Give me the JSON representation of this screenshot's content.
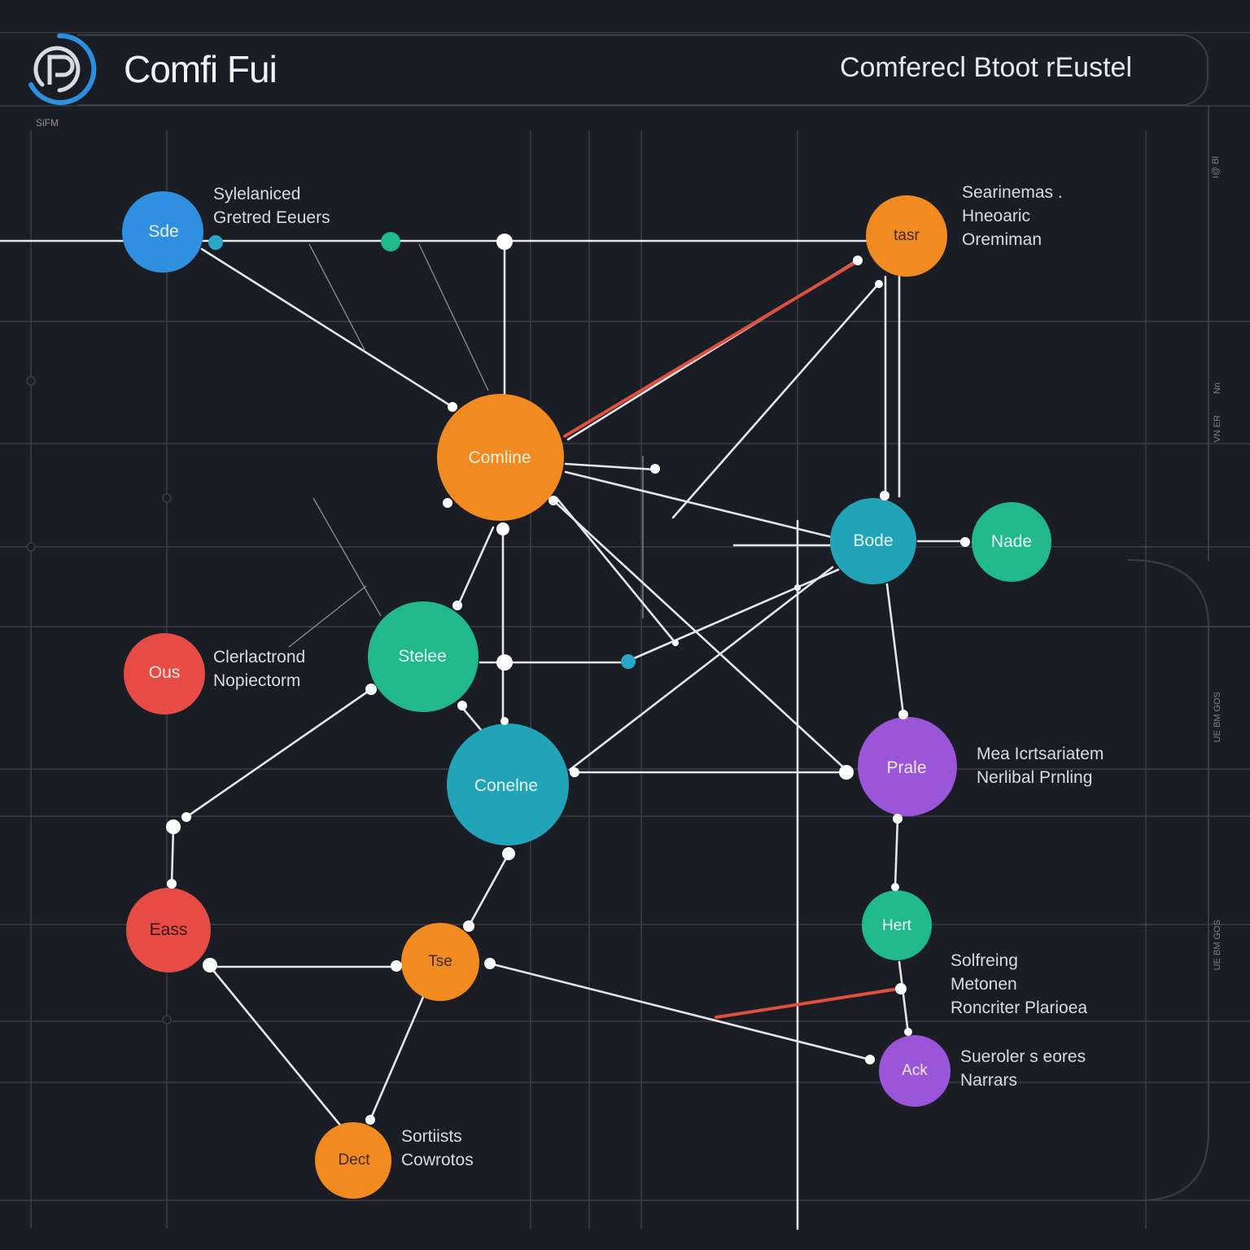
{
  "header": {
    "brand": "Comfi Fui",
    "brand_sub": "SiFM",
    "title": "Comferecl Btoot rEustel"
  },
  "side_tags": [
    "I@ Bl",
    "Nn",
    "VN ER",
    "UE BM GOS",
    "UE BM GOS"
  ],
  "colors": {
    "background": "#1b1d24",
    "grid": "#3a3d46",
    "edge": "#e4e6ea",
    "edge_highlight": "#e0503f",
    "blue": "#2f8fe0",
    "orange": "#f28a22",
    "green": "#21b98a",
    "teal": "#22a4b8",
    "red": "#e64c45",
    "purple": "#9a55d8"
  },
  "nodes": [
    {
      "id": "sde",
      "label": "Sde",
      "color": "blue"
    },
    {
      "id": "tasr",
      "label": "tasr",
      "color": "orange"
    },
    {
      "id": "comline",
      "label": "Comline",
      "color": "orange"
    },
    {
      "id": "bode",
      "label": "Bode",
      "color": "teal"
    },
    {
      "id": "nade",
      "label": "Nade",
      "color": "green"
    },
    {
      "id": "stelee",
      "label": "Stelee",
      "color": "green"
    },
    {
      "id": "ous",
      "label": "Ous",
      "color": "red"
    },
    {
      "id": "conelne",
      "label": "Conelne",
      "color": "teal"
    },
    {
      "id": "prale",
      "label": "Prale",
      "color": "purple"
    },
    {
      "id": "eass",
      "label": "Eass",
      "color": "red"
    },
    {
      "id": "tse",
      "label": "Tse",
      "color": "orange"
    },
    {
      "id": "hert",
      "label": "Hert",
      "color": "green"
    },
    {
      "id": "ack",
      "label": "Ack",
      "color": "purple"
    },
    {
      "id": "dect",
      "label": "Dect",
      "color": "orange"
    }
  ],
  "captions": [
    {
      "id": "cap-sde",
      "lines": [
        "Sylelaniced",
        "Gretred Eeuers"
      ]
    },
    {
      "id": "cap-tasr",
      "lines": [
        "Searinemas .",
        "Hneoaric",
        " Oremiman"
      ]
    },
    {
      "id": "cap-ous",
      "lines": [
        "Clerlactrond",
        "Nopiectorm"
      ]
    },
    {
      "id": "cap-prale",
      "lines": [
        "Mea Icrtsariatem",
        "Nerlibal Prnling"
      ]
    },
    {
      "id": "cap-hert",
      "lines": [
        "Solfreing",
        "Metonen",
        "Roncriter Plarioea"
      ]
    },
    {
      "id": "cap-ack",
      "lines": [
        "Sueroler s eores",
        "Narrars"
      ]
    },
    {
      "id": "cap-dect",
      "lines": [
        "Sortiists",
        "Cowrotos"
      ]
    }
  ]
}
